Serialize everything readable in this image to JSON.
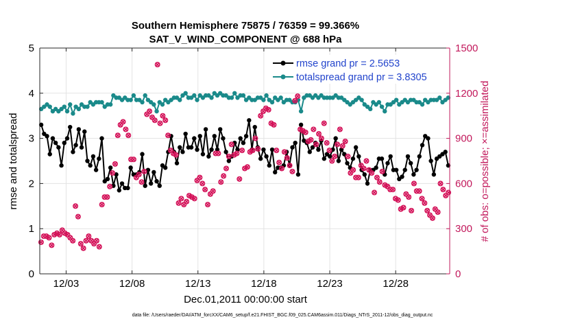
{
  "chart_data": {
    "type": "line",
    "title": "Southern Hemisphere 75875 / 76359 = 99.366%",
    "subtitle": "SAT_V_WIND_COMPONENT @ 688 hPa",
    "xlabel": "Dec.01,2011 00:00:00 start",
    "ylabel_left": "rmse and totalspread",
    "ylabel_right": "# of obs: o=possible; ×=assimilated",
    "footer": "data file: /Users/raeder/DAI/ATM_forcXX/CAM6_setup/f.e21.FHIST_BGC.f09_025.CAM6assim.011/Diags_NTrS_2011-12/obs_diag_output.nc",
    "xlim": [
      1.0,
      32.1
    ],
    "ylim_left": [
      0,
      5
    ],
    "ylim_right": [
      0,
      1500
    ],
    "x_ticks": [
      3,
      8,
      13,
      18,
      23,
      28
    ],
    "x_tick_labels": [
      "12/03",
      "12/08",
      "12/13",
      "12/18",
      "12/23",
      "12/28"
    ],
    "y_ticks_left": [
      0,
      1,
      2,
      3,
      4,
      5
    ],
    "y_tick_labels_left": [
      "0",
      "1",
      "2",
      "3",
      "4",
      "5"
    ],
    "y_ticks_right": [
      0,
      300,
      600,
      900,
      1200,
      1500
    ],
    "y_tick_labels_right": [
      "0",
      "300",
      "600",
      "900",
      "1200",
      "1500"
    ],
    "grid": true,
    "legend": [
      {
        "label": "rmse grand pr = 2.5653",
        "color": "#000000"
      },
      {
        "label": "totalspread grand pr = 3.8305",
        "color": "#1a8a8a"
      }
    ],
    "colors": {
      "rmse": "#000000",
      "spread": "#1a8a8a",
      "obs": "#d4145a",
      "legend_text": "#2244cc",
      "right_axis": "#c2185b"
    },
    "series": [
      {
        "name": "rmse",
        "axis": "left",
        "values": [
          3.3,
          3.1,
          3.05,
          2.65,
          3.0,
          2.9,
          2.8,
          2.4,
          2.9,
          3.0,
          3.25,
          2.7,
          2.85,
          3.2,
          2.8,
          3.15,
          2.5,
          2.4,
          2.6,
          2.3,
          2.55,
          3.0,
          2.05,
          2.1,
          2.35,
          1.95,
          2.2,
          1.85,
          2.0,
          1.9,
          1.9,
          2.35,
          2.2,
          2.2,
          2.25,
          2.65,
          1.95,
          2.3,
          2.0,
          2.25,
          2.05,
          1.95,
          2.4,
          2.35,
          2.7,
          3.05,
          2.7,
          2.45,
          2.8,
          2.7,
          3.1,
          2.8,
          2.8,
          3.0,
          2.75,
          3.05,
          2.65,
          3.2,
          2.6,
          2.75,
          3.05,
          2.75,
          3.2,
          3.0,
          2.7,
          2.5,
          2.6,
          2.9,
          2.75,
          3.0,
          2.9,
          3.05,
          3.4,
          2.75,
          3.25,
          2.8,
          2.55,
          2.75,
          2.6,
          2.4,
          2.75,
          2.25,
          2.35,
          2.35,
          2.4,
          2.7,
          2.4,
          2.8,
          2.9,
          2.2,
          3.3,
          2.95,
          2.9,
          2.7,
          2.8,
          2.9,
          2.75,
          2.95,
          2.55,
          2.65,
          2.6,
          2.75,
          3.0,
          2.5,
          2.75,
          2.65,
          2.45,
          2.35,
          2.55,
          2.8,
          2.6,
          2.3,
          2.2,
          2.0,
          2.3,
          2.3,
          2.35,
          2.55,
          2.55,
          2.2,
          2.45,
          2.6,
          2.3,
          2.3,
          2.1,
          2.15,
          2.3,
          2.6,
          2.45,
          2.2,
          2.3,
          2.6,
          2.85,
          3.05,
          3.0,
          2.5,
          2.2,
          2.55,
          2.6,
          2.65,
          2.7,
          2.4
        ]
      },
      {
        "name": "totalspread",
        "axis": "left",
        "values": [
          3.65,
          3.7,
          3.75,
          3.7,
          3.6,
          3.65,
          3.6,
          3.65,
          3.7,
          3.6,
          3.75,
          3.55,
          3.7,
          3.65,
          3.75,
          3.7,
          3.7,
          3.8,
          3.75,
          3.8,
          3.8,
          3.8,
          3.7,
          3.75,
          3.75,
          3.95,
          3.9,
          3.9,
          3.85,
          3.9,
          3.85,
          3.85,
          3.95,
          3.85,
          3.85,
          3.8,
          3.95,
          3.85,
          3.8,
          3.75,
          3.6,
          3.8,
          3.75,
          3.85,
          3.8,
          3.85,
          3.9,
          3.9,
          3.85,
          3.95,
          4.0,
          3.9,
          3.9,
          3.95,
          3.85,
          3.95,
          3.9,
          3.95,
          3.95,
          3.9,
          4.0,
          3.95,
          4.0,
          3.95,
          3.95,
          3.9,
          3.9,
          4.0,
          3.9,
          3.95,
          3.95,
          3.85,
          3.9,
          3.85,
          3.85,
          3.9,
          3.9,
          3.85,
          3.95,
          3.85,
          3.8,
          3.9,
          3.85,
          3.9,
          3.8,
          3.85,
          3.85,
          3.8,
          3.8,
          3.85,
          3.6,
          3.9,
          3.95,
          3.95,
          3.9,
          3.95,
          3.9,
          3.95,
          3.9,
          3.9,
          3.9,
          3.9,
          3.95,
          3.9,
          3.9,
          3.85,
          3.8,
          3.75,
          3.8,
          3.85,
          3.9,
          3.85,
          3.75,
          3.7,
          3.65,
          3.8,
          3.75,
          3.8,
          3.7,
          3.6,
          3.75,
          3.75,
          3.8,
          3.85,
          3.75,
          3.8,
          3.85,
          3.8,
          3.85,
          3.85,
          3.8,
          3.8,
          3.75,
          3.85,
          3.8,
          3.85,
          3.85,
          3.85,
          3.9,
          3.8,
          3.85,
          3.9
        ]
      },
      {
        "name": "obs_possible",
        "axis": "right",
        "values": [
          210,
          250,
          250,
          240,
          190,
          260,
          270,
          260,
          290,
          270,
          260,
          240,
          220,
          450,
          380,
          200,
          170,
          220,
          250,
          220,
          200,
          220,
          180,
          460,
          510,
          510,
          580,
          670,
          730,
          920,
          990,
          1010,
          960,
          920,
          760,
          760,
          640,
          660,
          610,
          680,
          1060,
          1080,
          1040,
          1020,
          1390,
          1000,
          1050,
          1020,
          920,
          820,
          800,
          790,
          470,
          500,
          460,
          480,
          520,
          510,
          500,
          620,
          640,
          600,
          560,
          460,
          530,
          550,
          800,
          800,
          610,
          650,
          700,
          780,
          860,
          790,
          800,
          630,
          820,
          700,
          710,
          810,
          820,
          900,
          830,
          1050,
          1080,
          1100,
          1090,
          1000,
          990,
          820,
          740,
          700,
          810,
          770,
          720,
          680,
          1150,
          1180,
          960,
          950,
          940,
          880,
          890,
          960,
          860,
          930,
          900,
          1000,
          870,
          820,
          750,
          780,
          860,
          960,
          850,
          880,
          780,
          670,
          690,
          640,
          640,
          720,
          700,
          750,
          690,
          670,
          540,
          640,
          610,
          680,
          590,
          580,
          560,
          560,
          500,
          490,
          430,
          440,
          530,
          510,
          420,
          600,
          550,
          550,
          500,
          470,
          420,
          390,
          370,
          430,
          410,
          600,
          560,
          520,
          540
        ]
      },
      {
        "name": "obs_assimilated",
        "axis": "right",
        "values": [
          210,
          250,
          250,
          240,
          190,
          260,
          270,
          260,
          290,
          270,
          260,
          240,
          220,
          450,
          380,
          200,
          170,
          220,
          250,
          220,
          200,
          220,
          180,
          460,
          510,
          510,
          580,
          670,
          730,
          920,
          990,
          1010,
          960,
          920,
          760,
          760,
          640,
          660,
          610,
          680,
          1060,
          1080,
          1040,
          1020,
          1390,
          1000,
          1050,
          1020,
          920,
          820,
          800,
          790,
          470,
          500,
          460,
          480,
          520,
          510,
          500,
          620,
          640,
          600,
          560,
          460,
          530,
          550,
          800,
          800,
          610,
          650,
          700,
          780,
          860,
          790,
          800,
          630,
          820,
          700,
          710,
          810,
          820,
          900,
          830,
          1050,
          1080,
          1100,
          1090,
          1000,
          990,
          820,
          740,
          700,
          810,
          770,
          720,
          680,
          1150,
          1180,
          960,
          950,
          940,
          880,
          890,
          960,
          860,
          930,
          900,
          1000,
          870,
          820,
          750,
          780,
          860,
          960,
          850,
          880,
          780,
          670,
          690,
          640,
          640,
          720,
          700,
          750,
          690,
          670,
          540,
          640,
          610,
          680,
          590,
          580,
          560,
          560,
          500,
          490,
          430,
          440,
          530,
          510,
          420,
          600,
          550,
          550,
          500,
          470,
          420,
          390,
          370,
          430,
          410,
          600,
          560,
          520,
          540
        ]
      }
    ]
  }
}
